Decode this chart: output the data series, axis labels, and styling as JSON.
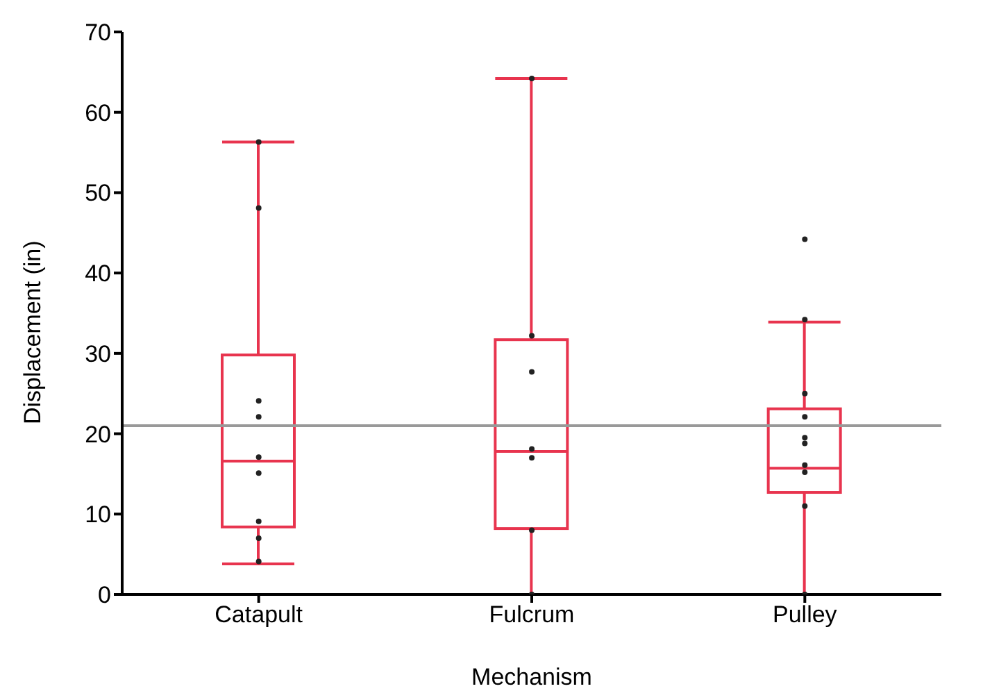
{
  "chart_data": {
    "type": "box",
    "xlabel": "Mechanism",
    "ylabel": "Displacement (in)",
    "categories": [
      "Catapult",
      "Fulcrum",
      "Pulley"
    ],
    "color": "#e8344e",
    "boxes": [
      {
        "low": 3.8,
        "q1": 8.4,
        "median": 16.6,
        "q3": 29.8,
        "high": 56.3
      },
      {
        "low": 0,
        "q1": 8.2,
        "median": 17.8,
        "q3": 31.7,
        "high": 64.2
      },
      {
        "low": 0,
        "q1": 12.7,
        "median": 15.7,
        "q3": 23.1,
        "high": 33.9
      }
    ],
    "series": [
      {
        "type": "scatter",
        "color": "#222222",
        "x": [
          "Catapult",
          "Catapult",
          "Catapult",
          "Catapult",
          "Catapult",
          "Catapult",
          "Catapult",
          "Catapult",
          "Catapult",
          "Fulcrum",
          "Fulcrum",
          "Fulcrum",
          "Fulcrum",
          "Fulcrum",
          "Fulcrum",
          "Fulcrum",
          "Pulley",
          "Pulley",
          "Pulley",
          "Pulley",
          "Pulley",
          "Pulley",
          "Pulley",
          "Pulley",
          "Pulley",
          "Pulley"
        ],
        "values": [
          56.3,
          48.1,
          24.1,
          22.1,
          17.1,
          15.1,
          9.1,
          7,
          4.1,
          64.2,
          32.2,
          27.7,
          18.1,
          17,
          8,
          0,
          44.2,
          34.2,
          25,
          22.1,
          19.5,
          18.8,
          16.1,
          15.2,
          11,
          0
        ]
      }
    ],
    "ref_lines": [
      {
        "axis": "y",
        "value": 21,
        "color": "#999999"
      }
    ],
    "ylim": [
      0,
      70
    ],
    "yticks": [
      0,
      10,
      20,
      30,
      40,
      50,
      60,
      70
    ],
    "grid": false,
    "legend": false
  }
}
